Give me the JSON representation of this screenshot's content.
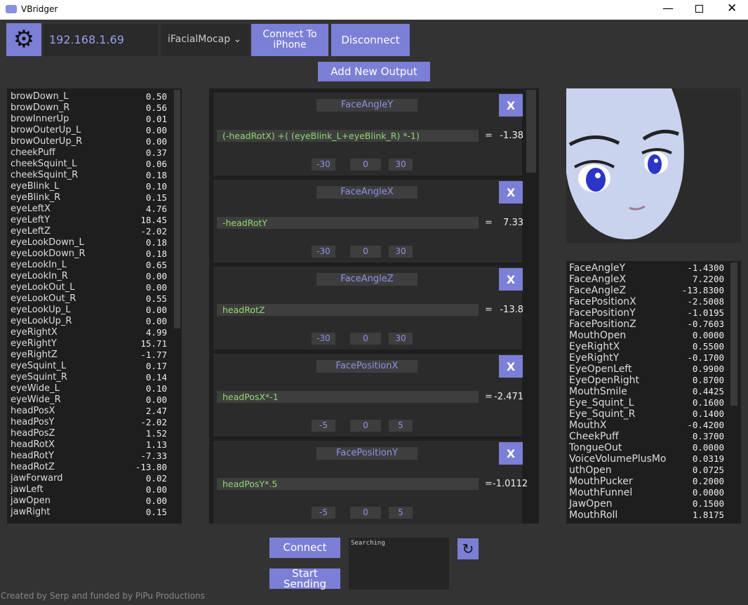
{
  "window": {
    "title": "VBridger"
  },
  "toolbar": {
    "ip": "192.168.1.69",
    "source": "iFacialMocap",
    "connect": "Connect To iPhone",
    "disconnect": "Disconnect",
    "add_output": "Add New Output"
  },
  "inputs": [
    [
      "browDown_L",
      "0.50"
    ],
    [
      "browDown_R",
      "0.56"
    ],
    [
      "browInnerUp",
      "0.01"
    ],
    [
      "browOuterUp_L",
      "0.00"
    ],
    [
      "browOuterUp_R",
      "0.00"
    ],
    [
      "cheekPuff",
      "0.37"
    ],
    [
      "cheekSquint_L",
      "0.06"
    ],
    [
      "cheekSquint_R",
      "0.18"
    ],
    [
      "eyeBlink_L",
      "0.10"
    ],
    [
      "eyeBlink_R",
      "0.15"
    ],
    [
      "eyeLeftX",
      "4.76"
    ],
    [
      "eyeLeftY",
      "18.45"
    ],
    [
      "eyeLeftZ",
      "-2.02"
    ],
    [
      "eyeLookDown_L",
      "0.18"
    ],
    [
      "eyeLookDown_R",
      "0.18"
    ],
    [
      "eyeLookIn_L",
      "0.65"
    ],
    [
      "eyeLookIn_R",
      "0.00"
    ],
    [
      "eyeLookOut_L",
      "0.00"
    ],
    [
      "eyeLookOut_R",
      "0.55"
    ],
    [
      "eyeLookUp_L",
      "0.00"
    ],
    [
      "eyeLookUp_R",
      "0.00"
    ],
    [
      "eyeRightX",
      "4.99"
    ],
    [
      "eyeRightY",
      "15.71"
    ],
    [
      "eyeRightZ",
      "-1.77"
    ],
    [
      "eyeSquint_L",
      "0.17"
    ],
    [
      "eyeSquint_R",
      "0.14"
    ],
    [
      "eyeWide_L",
      "0.10"
    ],
    [
      "eyeWide_R",
      "0.00"
    ],
    [
      "headPosX",
      "2.47"
    ],
    [
      "headPosY",
      "-2.02"
    ],
    [
      "headPosZ",
      "1.52"
    ],
    [
      "headRotX",
      "1.13"
    ],
    [
      "headRotY",
      "-7.33"
    ],
    [
      "headRotZ",
      "-13.80"
    ],
    [
      "jawForward",
      "0.02"
    ],
    [
      "jawLeft",
      "0.00"
    ],
    [
      "jawOpen",
      "0.00"
    ],
    [
      "jawRight",
      "0.15"
    ]
  ],
  "outputs": {
    "equals": "=",
    "remove": "X",
    "cards": [
      {
        "name": "FaceAngleY",
        "expression": "(-headRotX) +( (eyeBlink_L+eyeBlink_R) *-1)",
        "result": "-1.38",
        "buttons": [
          "-30",
          "0",
          "30"
        ]
      },
      {
        "name": "FaceAngleX",
        "expression": "-headRotY",
        "result": "7.33",
        "buttons": [
          "-30",
          "0",
          "30"
        ]
      },
      {
        "name": "FaceAngleZ",
        "expression": "headRotZ",
        "result": "-13.8",
        "buttons": [
          "-30",
          "0",
          "30"
        ]
      },
      {
        "name": "FacePositionX",
        "expression": "headPosX*-1",
        "result": "-2.471",
        "buttons": [
          "-5",
          "0",
          "5"
        ]
      },
      {
        "name": "FacePositionY",
        "expression": "headPosY*.5",
        "result": "-1.0112",
        "buttons": [
          "-5",
          "0",
          "5"
        ]
      }
    ]
  },
  "params": [
    [
      "FaceAngleY",
      "-1.4300"
    ],
    [
      "FaceAngleX",
      "7.2200"
    ],
    [
      "FaceAngleZ",
      "-13.8300"
    ],
    [
      "FacePositionX",
      "-2.5008"
    ],
    [
      "FacePositionY",
      "-1.0195"
    ],
    [
      "FacePositionZ",
      "-0.7603"
    ],
    [
      "MouthOpen",
      "0.0000"
    ],
    [
      "EyeRightX",
      "0.5500"
    ],
    [
      "EyeRightY",
      "-0.1700"
    ],
    [
      "EyeOpenLeft",
      "0.9900"
    ],
    [
      "EyeOpenRight",
      "0.8700"
    ],
    [
      "MouthSmile",
      "0.4425"
    ],
    [
      "Eye_Squint_L",
      "0.1600"
    ],
    [
      "Eye_Squint_R",
      "0.1400"
    ],
    [
      "MouthX",
      "-0.4200"
    ],
    [
      "CheekPuff",
      "0.3700"
    ],
    [
      "TongueOut",
      "0.0000"
    ],
    [
      "VoiceVolumePlusMo",
      "0.0319"
    ],
    [
      "uthOpen",
      "0.0725"
    ],
    [
      "MouthPucker",
      "0.2000"
    ],
    [
      "MouthFunnel",
      "0.0000"
    ],
    [
      "JawOpen",
      "0.1500"
    ],
    [
      "MouthRoll",
      "1.8175"
    ]
  ],
  "bottom": {
    "connect": "Connect",
    "status": "Searching",
    "start": "Start Sending",
    "footer": "Created by Serp and funded by PiPu Productions"
  }
}
